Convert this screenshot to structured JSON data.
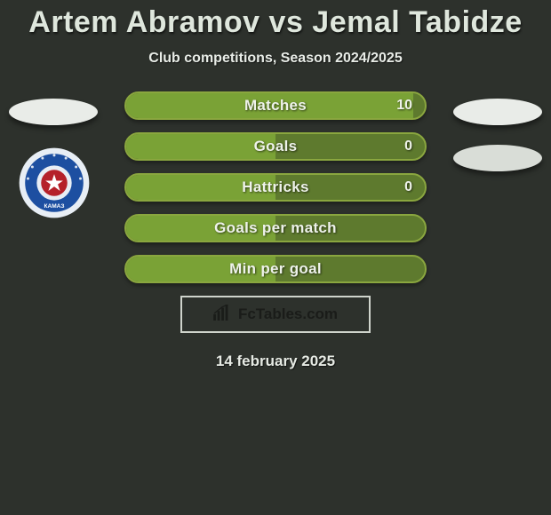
{
  "colors": {
    "bg": "#2d312c",
    "text": "#e8ece7",
    "accent_border": "#8aa63f",
    "accent_fill_light": "#7aa236",
    "accent_fill_dark": "#5e7a2e",
    "ellipse": "#e9ece8",
    "badge_outer": "#e8eef5",
    "badge_ring": "#1d4fa1",
    "badge_star": "#b5212a"
  },
  "title": "Artem Abramov vs Jemal Tabidze",
  "subtitle": "Club competitions, Season 2024/2025",
  "stats": [
    {
      "label": "Matches",
      "value": "10",
      "fill_pct": 96
    },
    {
      "label": "Goals",
      "value": "0",
      "fill_pct": 50
    },
    {
      "label": "Hattricks",
      "value": "0",
      "fill_pct": 50
    },
    {
      "label": "Goals per match",
      "value": "",
      "fill_pct": 50
    },
    {
      "label": "Min per goal",
      "value": "",
      "fill_pct": 50
    }
  ],
  "brand": "FcTables.com",
  "date": "14 february 2025",
  "club_badge_text": "КАМАЗ"
}
